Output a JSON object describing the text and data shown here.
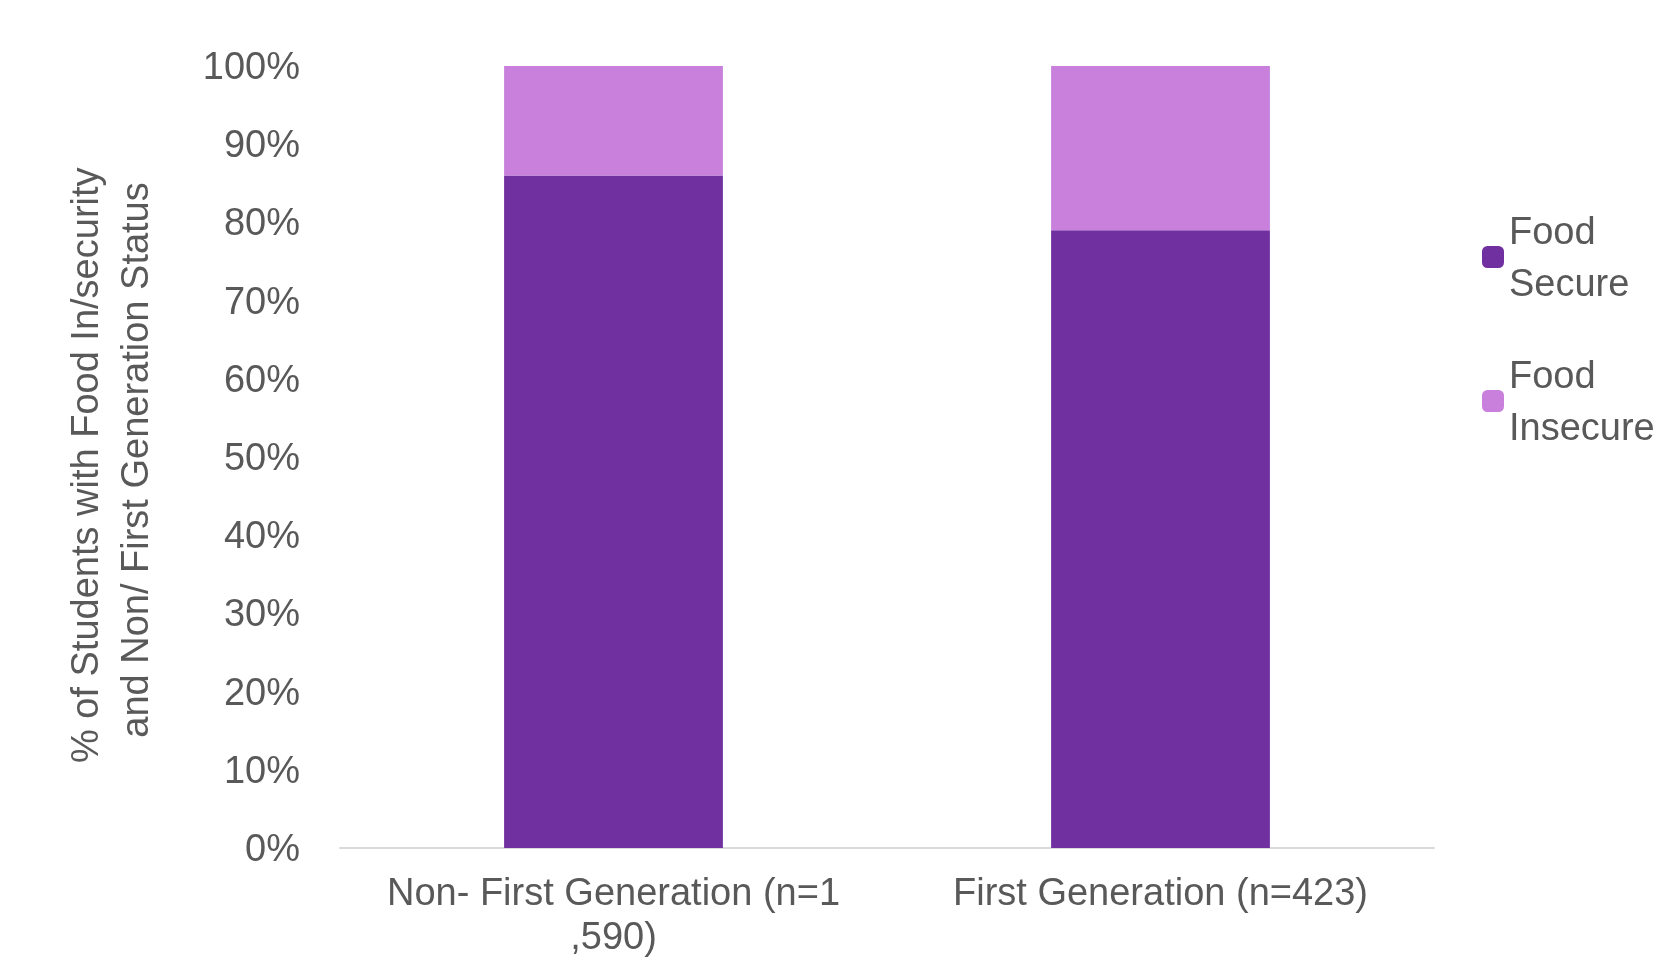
{
  "chart_data": {
    "type": "bar",
    "stacked": true,
    "ylabel": "% of Students with Food In/security and Non/ First Generation Status",
    "categories": [
      "Non- First Generation (n=1,590)",
      "First Generation (n=423)"
    ],
    "series": [
      {
        "name": "Food Secure",
        "color": "#7030a0",
        "values": [
          86,
          79
        ]
      },
      {
        "name": "Food Insecure",
        "color": "#c880dc",
        "values": [
          14,
          21
        ]
      }
    ],
    "ylim": [
      0,
      100
    ],
    "yticks": [
      {
        "value": 0,
        "label": "0%"
      },
      {
        "value": 10,
        "label": "10%"
      },
      {
        "value": 20,
        "label": "20%"
      },
      {
        "value": 30,
        "label": "30%"
      },
      {
        "value": 40,
        "label": "40%"
      },
      {
        "value": 50,
        "label": "50%"
      },
      {
        "value": 60,
        "label": "60%"
      },
      {
        "value": 70,
        "label": "70%"
      },
      {
        "value": 80,
        "label": "80%"
      },
      {
        "value": 90,
        "label": "90%"
      },
      {
        "value": 100,
        "label": "100%"
      }
    ],
    "legend": "right",
    "grid": false
  }
}
